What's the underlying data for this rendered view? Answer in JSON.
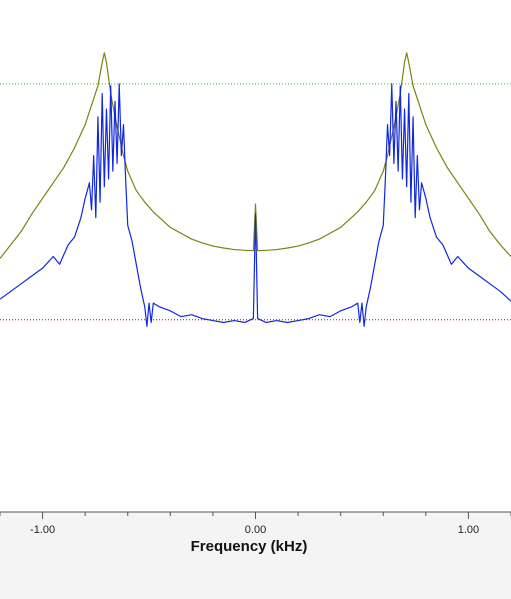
{
  "chart_data": {
    "type": "line",
    "xlabel": "Frequency (kHz)",
    "ylabel": "",
    "title": "",
    "xlim": [
      -1.2,
      1.2
    ],
    "ylim": [
      0,
      1
    ],
    "x_ticks": [
      {
        "value": -1.0,
        "label": "-1.00"
      },
      {
        "value": 0.0,
        "label": "0.00"
      },
      {
        "value": 1.0,
        "label": "1.00"
      }
    ],
    "minor_ticks_per_major": 4,
    "grid": false,
    "legend": "none",
    "reference_lines": [
      {
        "y": 0.905,
        "color": "#22cc22",
        "style": "dotted"
      },
      {
        "y": 0.297,
        "color": "#aa1111",
        "style": "dotted"
      }
    ],
    "series": [
      {
        "color": "#808010",
        "x": [
          -1.2,
          -1.15,
          -1.1,
          -1.05,
          -1.0,
          -0.95,
          -0.9,
          -0.85,
          -0.8,
          -0.77,
          -0.74,
          -0.72,
          -0.71,
          -0.7,
          -0.68,
          -0.66,
          -0.64,
          -0.62,
          -0.6,
          -0.56,
          -0.52,
          -0.48,
          -0.44,
          -0.4,
          -0.35,
          -0.3,
          -0.25,
          -0.2,
          -0.15,
          -0.1,
          -0.05,
          -0.01,
          0.0,
          0.01,
          0.05,
          0.1,
          0.15,
          0.2,
          0.25,
          0.3,
          0.35,
          0.4,
          0.44,
          0.48,
          0.52,
          0.56,
          0.6,
          0.62,
          0.64,
          0.66,
          0.68,
          0.7,
          0.71,
          0.72,
          0.74,
          0.77,
          0.8,
          0.85,
          0.9,
          0.95,
          1.0,
          1.05,
          1.1,
          1.15,
          1.2
        ],
        "y": [
          0.455,
          0.49,
          0.525,
          0.57,
          0.61,
          0.65,
          0.69,
          0.74,
          0.8,
          0.85,
          0.9,
          0.96,
          0.985,
          0.96,
          0.88,
          0.82,
          0.77,
          0.72,
          0.68,
          0.63,
          0.6,
          0.575,
          0.555,
          0.535,
          0.52,
          0.505,
          0.495,
          0.487,
          0.482,
          0.478,
          0.476,
          0.475,
          0.595,
          0.475,
          0.476,
          0.478,
          0.482,
          0.487,
          0.495,
          0.505,
          0.52,
          0.535,
          0.555,
          0.575,
          0.6,
          0.63,
          0.68,
          0.72,
          0.77,
          0.82,
          0.88,
          0.96,
          0.985,
          0.96,
          0.9,
          0.85,
          0.8,
          0.74,
          0.69,
          0.65,
          0.61,
          0.57,
          0.525,
          0.49,
          0.46
        ]
      },
      {
        "color": "#1028e0",
        "x": [
          -1.2,
          -1.15,
          -1.1,
          -1.05,
          -1.0,
          -0.95,
          -0.92,
          -0.88,
          -0.85,
          -0.82,
          -0.8,
          -0.78,
          -0.77,
          -0.76,
          -0.75,
          -0.74,
          -0.73,
          -0.72,
          -0.71,
          -0.7,
          -0.69,
          -0.68,
          -0.67,
          -0.66,
          -0.65,
          -0.64,
          -0.63,
          -0.62,
          -0.61,
          -0.6,
          -0.58,
          -0.56,
          -0.54,
          -0.52,
          -0.51,
          -0.5,
          -0.49,
          -0.48,
          -0.45,
          -0.4,
          -0.35,
          -0.3,
          -0.25,
          -0.2,
          -0.15,
          -0.1,
          -0.05,
          -0.01,
          0.0,
          0.01,
          0.05,
          0.1,
          0.15,
          0.2,
          0.25,
          0.3,
          0.35,
          0.4,
          0.45,
          0.48,
          0.49,
          0.5,
          0.51,
          0.52,
          0.54,
          0.56,
          0.58,
          0.6,
          0.61,
          0.62,
          0.63,
          0.64,
          0.65,
          0.66,
          0.67,
          0.68,
          0.69,
          0.7,
          0.71,
          0.72,
          0.73,
          0.74,
          0.75,
          0.76,
          0.77,
          0.78,
          0.8,
          0.82,
          0.85,
          0.88,
          0.92,
          0.95,
          1.0,
          1.05,
          1.1,
          1.15,
          1.2
        ],
        "y": [
          0.35,
          0.37,
          0.39,
          0.41,
          0.43,
          0.46,
          0.44,
          0.49,
          0.51,
          0.56,
          0.61,
          0.65,
          0.58,
          0.72,
          0.56,
          0.82,
          0.6,
          0.88,
          0.64,
          0.84,
          0.66,
          0.9,
          0.68,
          0.86,
          0.7,
          0.905,
          0.72,
          0.8,
          0.66,
          0.54,
          0.5,
          0.44,
          0.38,
          0.33,
          0.28,
          0.34,
          0.29,
          0.34,
          0.33,
          0.32,
          0.305,
          0.31,
          0.3,
          0.295,
          0.29,
          0.295,
          0.29,
          0.3,
          0.57,
          0.3,
          0.29,
          0.295,
          0.29,
          0.295,
          0.3,
          0.31,
          0.305,
          0.32,
          0.33,
          0.34,
          0.29,
          0.34,
          0.28,
          0.33,
          0.38,
          0.44,
          0.5,
          0.54,
          0.66,
          0.8,
          0.72,
          0.905,
          0.7,
          0.86,
          0.68,
          0.9,
          0.66,
          0.84,
          0.64,
          0.88,
          0.6,
          0.82,
          0.56,
          0.72,
          0.58,
          0.65,
          0.61,
          0.56,
          0.51,
          0.49,
          0.44,
          0.46,
          0.43,
          0.41,
          0.39,
          0.37,
          0.345
        ]
      }
    ]
  }
}
